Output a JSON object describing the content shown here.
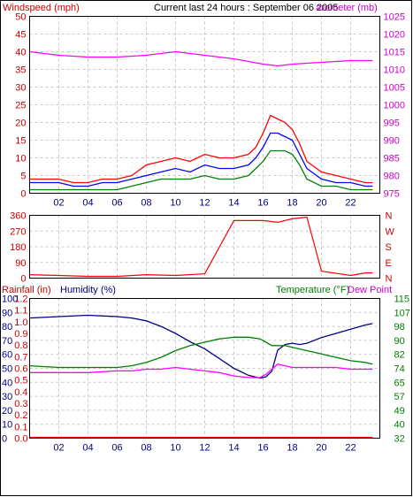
{
  "chart_data": [
    {
      "type": "line",
      "title": "Current last 24 hours : September 06 2005",
      "left_axis_label": "Windspeed (mph)",
      "right_axis_label": "Barometer (mb)",
      "right_axis_label_visible": "arometer (mb)",
      "left_ylim": [
        0,
        50
      ],
      "left_ticks": [
        "0",
        "5",
        "10",
        "15",
        "20",
        "25",
        "30",
        "35",
        "40",
        "45",
        "50"
      ],
      "right_ylim": [
        975,
        1025
      ],
      "right_ticks": [
        "975",
        "980",
        "985",
        "990",
        "995",
        "1000",
        "1005",
        "1010",
        "1015",
        "1020",
        "1025"
      ],
      "x_ticks": [
        "02",
        "04",
        "06",
        "08",
        "10",
        "12",
        "14",
        "16",
        "18",
        "20",
        "22"
      ],
      "xlim": [
        0,
        24
      ],
      "grid": true,
      "colors": {
        "wind_gust": "#ff0000",
        "wind_avg": "#0000ff",
        "wind_low": "#008000",
        "barometer": "#ff00ff",
        "left_axis": "#cc0000",
        "right_axis": "#cc00cc"
      },
      "series": [
        {
          "color": "#ff00ff",
          "axis": "right",
          "x": [
            0,
            2,
            4,
            6,
            8,
            10,
            12,
            14,
            16,
            17,
            18,
            20,
            22,
            23.5
          ],
          "y": [
            1015,
            1014,
            1013.5,
            1013.5,
            1014,
            1015,
            1014,
            1013,
            1011.5,
            1011,
            1011.5,
            1012,
            1012.5,
            1012.5
          ]
        },
        {
          "color": "#ff0000",
          "axis": "left",
          "x": [
            0,
            1,
            2,
            3,
            4,
            5,
            6,
            7,
            8,
            9,
            10,
            11,
            12,
            13,
            14,
            15,
            15.5,
            16,
            16.5,
            17,
            17.5,
            18,
            18.5,
            19,
            20,
            21,
            22,
            23,
            23.5
          ],
          "y": [
            4,
            4,
            4,
            3,
            3,
            4,
            4,
            5,
            8,
            9,
            10,
            9,
            11,
            10,
            10,
            11,
            13,
            17,
            22,
            21,
            20,
            18,
            14,
            9,
            6,
            5,
            4,
            3,
            3
          ]
        },
        {
          "color": "#0000ff",
          "axis": "left",
          "x": [
            0,
            1,
            2,
            3,
            4,
            5,
            6,
            7,
            8,
            9,
            10,
            11,
            12,
            13,
            14,
            15,
            15.5,
            16,
            16.5,
            17,
            17.5,
            18,
            18.5,
            19,
            20,
            21,
            22,
            23,
            23.5
          ],
          "y": [
            3,
            3,
            3,
            2,
            2,
            3,
            3,
            4,
            5,
            6,
            7,
            6,
            8,
            7,
            7,
            8,
            10,
            13,
            17,
            17,
            16,
            15,
            11,
            7,
            4,
            3,
            3,
            2,
            2
          ]
        },
        {
          "color": "#008000",
          "axis": "left",
          "x": [
            0,
            1,
            2,
            3,
            4,
            5,
            6,
            7,
            8,
            9,
            10,
            11,
            12,
            13,
            14,
            15,
            15.5,
            16,
            16.5,
            17,
            17.5,
            18,
            18.5,
            19,
            20,
            21,
            22,
            23,
            23.5
          ],
          "y": [
            1,
            1,
            1,
            1,
            1,
            1,
            1,
            2,
            3,
            4,
            4,
            4,
            5,
            4,
            4,
            5,
            7,
            9,
            12,
            12,
            12,
            11,
            8,
            4,
            2,
            2,
            1,
            1,
            1
          ]
        }
      ]
    },
    {
      "type": "line",
      "left_ticks": [
        "0",
        "90",
        "180",
        "270",
        "360"
      ],
      "right_ticks": [
        "N",
        "E",
        "S",
        "W",
        "N"
      ],
      "right_ticks_top_to_bottom": [
        "N",
        "W",
        "S",
        "E",
        "N"
      ],
      "ylim": [
        0,
        360
      ],
      "xlim": [
        0,
        24
      ],
      "x_ticks": [
        "02",
        "04",
        "06",
        "08",
        "10",
        "12",
        "14",
        "16",
        "18",
        "20",
        "22"
      ],
      "grid": true,
      "colors": {
        "direction": "#ff0000",
        "left_axis": "#cc0000",
        "right_axis": "#cc0000"
      },
      "series": [
        {
          "color": "#ff0000",
          "x": [
            0,
            2,
            4,
            6,
            8,
            10,
            12,
            14,
            16,
            17,
            18,
            19,
            20,
            22,
            23,
            23.5
          ],
          "y": [
            20,
            15,
            10,
            10,
            20,
            15,
            25,
            330,
            330,
            320,
            340,
            350,
            40,
            15,
            30,
            30
          ]
        }
      ]
    },
    {
      "type": "line",
      "labels": [
        "Rainfall (in)",
        "Humidity (%)",
        "Temperature (°F)",
        "Dew Point"
      ],
      "humidity_ticks": [
        "0",
        "10",
        "20",
        "30",
        "40",
        "50",
        "60",
        "70",
        "80",
        "90",
        "100"
      ],
      "rain_ticks": [
        "0.0",
        "0.1",
        "0.2",
        "0.3",
        "0.4",
        "0.5",
        "0.6",
        "0.7",
        "0.8",
        "0.9",
        "1.0",
        "1.1",
        "1.2"
      ],
      "temp_ticks": [
        "32",
        "40",
        "49",
        "57",
        "65",
        "74",
        "82",
        "90",
        "98",
        "107",
        "115"
      ],
      "humidity_ylim": [
        0,
        100
      ],
      "rain_ylim": [
        0,
        1.2
      ],
      "temp_ylim": [
        32,
        115
      ],
      "xlim": [
        0,
        24
      ],
      "x_ticks": [
        "02",
        "04",
        "06",
        "08",
        "10",
        "12",
        "14",
        "16",
        "18",
        "20",
        "22"
      ],
      "grid": true,
      "colors": {
        "humidity": "#000080",
        "temperature": "#008000",
        "dew_point": "#ff00ff",
        "rainfall": "#ff0000",
        "rain_axis": "#cc0000",
        "humidity_axis": "#000080",
        "temp_axis": "#008000"
      },
      "series": [
        {
          "color": "#000080",
          "axis": "humidity",
          "x": [
            0,
            2,
            4,
            6,
            7,
            8,
            9,
            10,
            11,
            12,
            13,
            14,
            15,
            15.8,
            16.2,
            16.6,
            17,
            17.5,
            18,
            18.5,
            19,
            20,
            21,
            22,
            23,
            23.5
          ],
          "y": [
            86,
            87,
            88,
            87,
            86,
            84,
            80,
            75,
            69,
            64,
            57,
            50,
            45,
            43,
            44,
            48,
            63,
            67,
            68,
            67,
            68,
            72,
            75,
            78,
            81,
            82
          ]
        },
        {
          "color": "#008000",
          "axis": "temp",
          "x": [
            0,
            2,
            4,
            6,
            7,
            8,
            9,
            10,
            11,
            12,
            13,
            14,
            15,
            15.8,
            16.2,
            16.6,
            17,
            17.5,
            18,
            18.5,
            19,
            20,
            21,
            22,
            23,
            23.5
          ],
          "y": [
            75,
            74,
            74,
            74,
            75,
            77,
            80,
            84,
            87,
            89,
            91,
            92,
            92,
            91,
            89,
            87,
            87,
            87,
            86,
            85,
            84,
            82,
            80,
            78,
            77,
            76
          ]
        },
        {
          "color": "#ff00ff",
          "axis": "temp",
          "x": [
            0,
            2,
            4,
            6,
            7,
            8,
            9,
            10,
            11,
            12,
            13,
            14,
            15,
            15.8,
            16.2,
            16.6,
            17,
            17.5,
            18,
            18.5,
            19,
            20,
            21,
            22,
            23,
            23.5
          ],
          "y": [
            71,
            71,
            71,
            72,
            72,
            73,
            73,
            74,
            73,
            72,
            71,
            69,
            68,
            68,
            70,
            73,
            76,
            75,
            74,
            74,
            74,
            74,
            74,
            73,
            73,
            73
          ]
        },
        {
          "color": "#ff0000",
          "axis": "rain",
          "x": [
            0,
            23.5
          ],
          "y": [
            0,
            0
          ]
        }
      ]
    }
  ]
}
